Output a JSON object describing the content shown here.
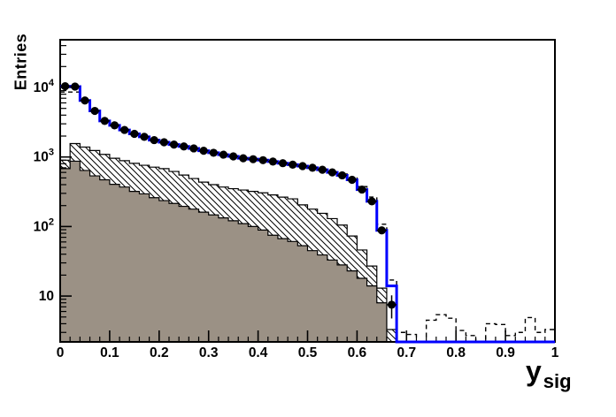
{
  "labels": {
    "y_axis_title": "Entries",
    "x_axis_title_main": "y",
    "x_axis_title_sub": "sig"
  },
  "colors": {
    "frame": "#000000",
    "data_marker": "#000000",
    "fit_line": "#0000ff",
    "dashed_line": "#000000",
    "hatched_outline": "#000000",
    "gray_fill": "#9b9185",
    "background": "#ffffff"
  },
  "chart_data": {
    "type": "bar",
    "subtype": "step-histograms-log-y",
    "title": "",
    "xlabel": "y_sig",
    "ylabel": "Entries",
    "x_range": [
      0,
      1
    ],
    "y_range": [
      2.2,
      50000
    ],
    "y_scale": "log",
    "grid": false,
    "legend": "none",
    "bin_width": 0.02,
    "n_bins": 50,
    "x_tick_values": [
      0,
      0.1,
      0.2,
      0.3,
      0.4,
      0.5,
      0.6,
      0.7,
      0.8,
      0.9,
      1
    ],
    "x_tick_labels": [
      "0",
      "0.1",
      "0.2",
      "0.3",
      "0.4",
      "0.5",
      "0.6",
      "0.7",
      "0.8",
      "0.9",
      "1"
    ],
    "y_tick_values": [
      10,
      100,
      1000,
      10000
    ],
    "y_tick_labels": [
      {
        "base": "10",
        "exp": ""
      },
      {
        "base": "10",
        "exp": "2"
      },
      {
        "base": "10",
        "exp": "3"
      },
      {
        "base": "10",
        "exp": "4"
      }
    ],
    "series": [
      {
        "name": "data-points",
        "style": "black-filled-circles-with-errors",
        "values": [
          10400,
          10300,
          6500,
          4600,
          3300,
          2850,
          2450,
          2150,
          1950,
          1750,
          1630,
          1510,
          1420,
          1330,
          1230,
          1150,
          1080,
          1020,
          960,
          930,
          900,
          860,
          815,
          775,
          740,
          700,
          655,
          600,
          545,
          470,
          340,
          230,
          88,
          7.5,
          0,
          0,
          0,
          0,
          0,
          0,
          0,
          0,
          0,
          0,
          0,
          0,
          0,
          0,
          0,
          0
        ]
      },
      {
        "name": "fit-histogram-blue",
        "style": "solid-blue-step-line",
        "values": [
          10400,
          10300,
          6500,
          4600,
          3300,
          2850,
          2450,
          2150,
          1950,
          1750,
          1630,
          1510,
          1420,
          1330,
          1230,
          1150,
          1080,
          1020,
          960,
          930,
          900,
          860,
          815,
          775,
          740,
          700,
          655,
          600,
          545,
          470,
          340,
          230,
          88,
          14,
          0,
          0,
          0,
          0,
          0,
          0,
          0,
          0,
          0,
          0,
          0,
          0,
          0,
          0,
          0,
          0
        ]
      },
      {
        "name": "total-model-dashed",
        "style": "black-dashed-step-line",
        "values": [
          8600,
          8600,
          6500,
          4600,
          3300,
          2850,
          2450,
          2150,
          1950,
          1750,
          1630,
          1510,
          1420,
          1330,
          1230,
          1150,
          1080,
          1020,
          960,
          930,
          900,
          860,
          815,
          775,
          740,
          700,
          660,
          620,
          570,
          510,
          375,
          265,
          108,
          17,
          3,
          2.8,
          2,
          4.5,
          5.4,
          4.8,
          3.2,
          2.7,
          2,
          4,
          3.9,
          2.7,
          3,
          4.9,
          3,
          3.3
        ]
      },
      {
        "name": "background-hatched",
        "style": "white-fill-diagonal-hatch-black-outline",
        "values": [
          900,
          1560,
          1390,
          1240,
          1090,
          960,
          885,
          810,
          760,
          715,
          680,
          620,
          550,
          490,
          435,
          400,
          370,
          350,
          335,
          320,
          305,
          285,
          265,
          250,
          205,
          178,
          155,
          130,
          105,
          73,
          46,
          27,
          13,
          3.3,
          0,
          0,
          0,
          0,
          0,
          0,
          0,
          0,
          0,
          0,
          0,
          0,
          0,
          0,
          0,
          0
        ]
      },
      {
        "name": "background-gray",
        "style": "solid-gray-fill-black-outline",
        "values": [
          680,
          870,
          640,
          535,
          470,
          405,
          370,
          320,
          295,
          260,
          236,
          215,
          195,
          178,
          161,
          147,
          133,
          121,
          110,
          100,
          89,
          75,
          67,
          61,
          53,
          45,
          39,
          33,
          28,
          23,
          18,
          14,
          8,
          0,
          0,
          0,
          0,
          0,
          0,
          0,
          0,
          0,
          0,
          0,
          0,
          0,
          0,
          0,
          0,
          0
        ]
      }
    ]
  }
}
